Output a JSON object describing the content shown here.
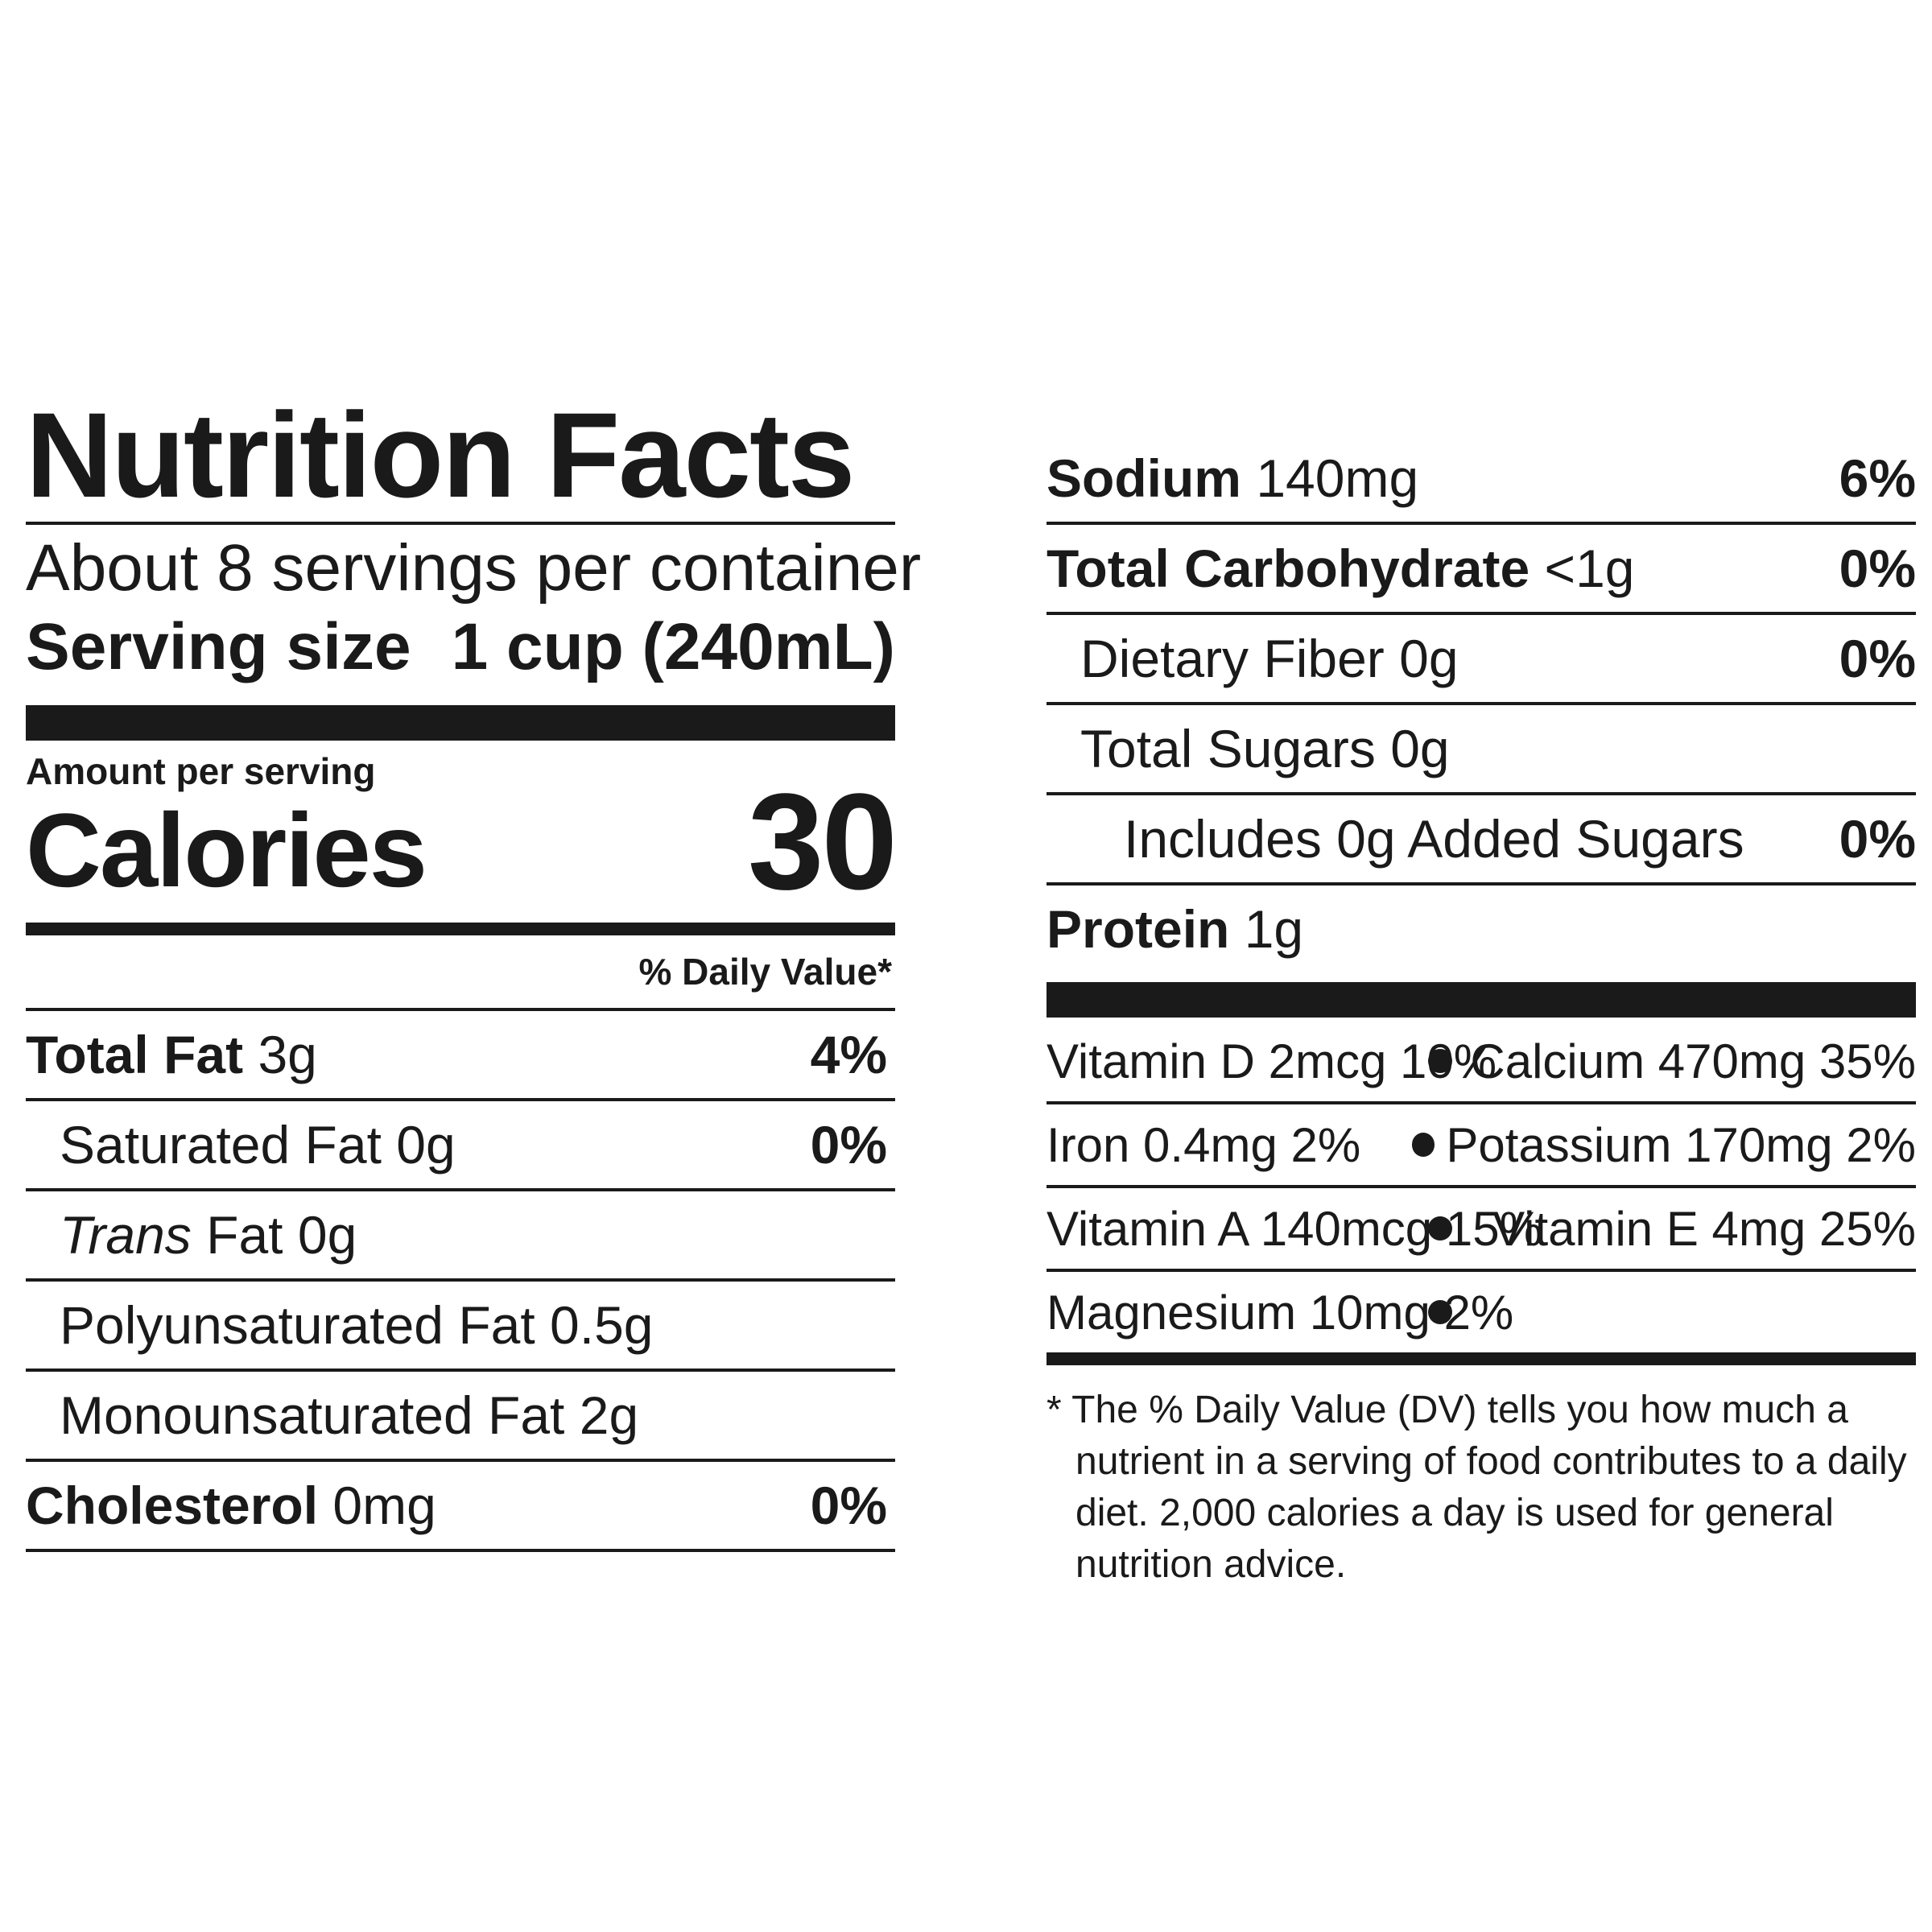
{
  "title": "Nutrition Facts",
  "servings_per_container": "About 8 servings per container",
  "serving_size": {
    "label": "Serving size",
    "value": "1 cup (240mL)"
  },
  "amount_per_serving": "Amount per serving",
  "calories": {
    "label": "Calories",
    "value": "30"
  },
  "daily_value_header": "% Daily Value*",
  "left_rows": [
    {
      "name": "Total Fat",
      "amount": "3g",
      "dv": "4%"
    },
    {
      "name": "Saturated Fat",
      "amount": "0g",
      "dv": "0%"
    },
    {
      "name_italic": "Trans",
      "name": "Fat",
      "amount": "0g"
    },
    {
      "name": "Polyunsaturated Fat",
      "amount": "0.5g"
    },
    {
      "name": "Monounsaturated Fat",
      "amount": "2g"
    },
    {
      "name": "Cholesterol",
      "amount": "0mg",
      "dv": "0%"
    }
  ],
  "right_rows": [
    {
      "name": "Sodium",
      "amount": "140mg",
      "dv": "6%"
    },
    {
      "name": "Total Carbohydrate",
      "amount": "<1g",
      "dv": "0%"
    },
    {
      "name": "Dietary Fiber",
      "amount": "0g",
      "dv": "0%"
    },
    {
      "name": "Total Sugars",
      "amount": "0g"
    },
    {
      "name": "Includes 0g Added Sugars",
      "dv": "0%"
    },
    {
      "name": "Protein",
      "amount": "1g"
    }
  ],
  "vitamins": [
    {
      "left": "Vitamin D 2mcg 10%",
      "right": "Calcium 470mg 35%"
    },
    {
      "left": "Iron 0.4mg 2%",
      "right": "Potassium 170mg 2%"
    },
    {
      "left": "Vitamin A 140mcg 15%",
      "right": "Vitamin E 4mg 25%"
    },
    {
      "left": "Magnesium 10mg 2%",
      "right": ""
    }
  ],
  "footnote": "* The % Daily Value (DV) tells you how much a nutrient in a serving of food contributes to a daily diet. 2,000 calories a day is used for general nutrition advice."
}
